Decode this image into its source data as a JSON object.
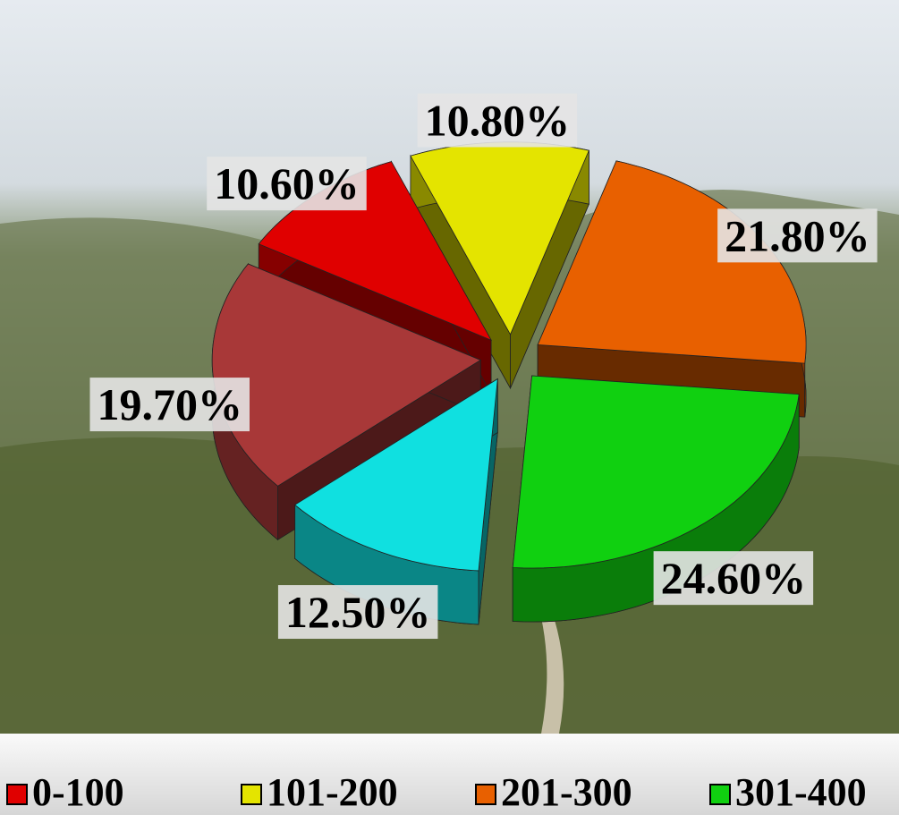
{
  "chart_data": {
    "type": "pie",
    "categories": [
      "0-100",
      "101-200",
      "201-300",
      "301-400",
      null,
      null
    ],
    "values": [
      10.6,
      10.8,
      21.8,
      24.6,
      12.5,
      19.7
    ],
    "value_labels": [
      "10.60%",
      "10.80%",
      "21.80%",
      "24.60%",
      "12.50%",
      "19.70%"
    ],
    "colors": [
      "#e00000",
      "#e4e400",
      "#e86000",
      "#10d010",
      "#10e0e0",
      "#a83838"
    ]
  }
}
